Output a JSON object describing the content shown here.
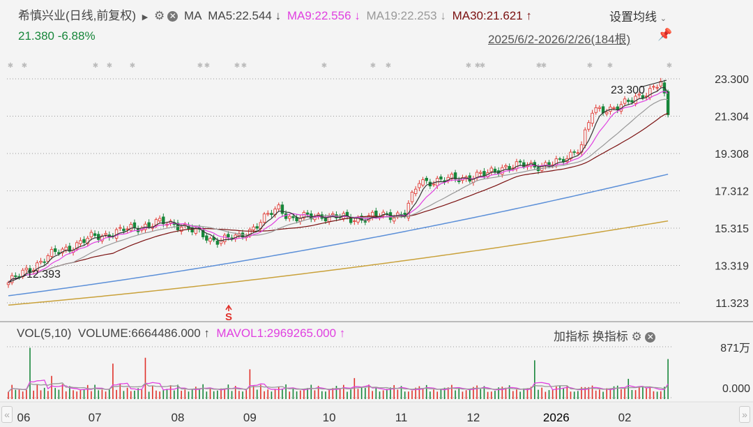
{
  "header": {
    "title": "希慎兴业(日线,前复权)",
    "ma_label": "MA",
    "ma5": "MA5:22.544 ↓",
    "ma9": "MA9:22.556 ↓",
    "ma19": "MA19:22.253 ↓",
    "ma30": "MA30:21.621 ↑",
    "set_ma": "设置均线",
    "price_change": "21.380 -6.88%",
    "range": "2025/6/2-2026/2/26(184根)"
  },
  "volume_header": {
    "vol": "VOL(5,10)",
    "volume": "VOLUME:6664486.000 ↑",
    "mavol": "MAVOL1:2969265.000 ↑",
    "add_indicator": "加指标",
    "switch_indicator": "换指标"
  },
  "annotations": {
    "high": "23.300",
    "low": "12.393",
    "signal": "S"
  },
  "colors": {
    "up": "#e0302a",
    "down": "#17863a",
    "ma5": "#333333",
    "ma9": "#e040e0",
    "ma19": "#999999",
    "ma30": "#7a1010",
    "long1": "#5b8fd8",
    "long2": "#c9a13a"
  },
  "chart_data": {
    "type": "candlestick",
    "bars": 184,
    "price_axis": [
      "23.300",
      "21.304",
      "19.308",
      "17.312",
      "15.315",
      "13.319",
      "11.323"
    ],
    "ylim": [
      11.323,
      23.3
    ],
    "x_labels": [
      "06",
      "07",
      "08",
      "09",
      "10",
      "11",
      "12",
      "2026",
      "02"
    ],
    "x_label_index": [
      2,
      24,
      47,
      67,
      89,
      109,
      129,
      152,
      171
    ],
    "close_anchors": [
      [
        0,
        12.4
      ],
      [
        11,
        13.8
      ],
      [
        23,
        14.8
      ],
      [
        41,
        15.6
      ],
      [
        48,
        15.5
      ],
      [
        56,
        14.7
      ],
      [
        64,
        14.8
      ],
      [
        75,
        16.4
      ],
      [
        79,
        15.8
      ],
      [
        87,
        16.0
      ],
      [
        95,
        15.8
      ],
      [
        110,
        16.1
      ],
      [
        114,
        17.8
      ],
      [
        122,
        17.9
      ],
      [
        133,
        18.2
      ],
      [
        137,
        18.6
      ],
      [
        149,
        18.7
      ],
      [
        153,
        18.8
      ],
      [
        159,
        19.8
      ],
      [
        162,
        21.5
      ],
      [
        168,
        21.8
      ],
      [
        172,
        22.0
      ],
      [
        181,
        23.1
      ],
      [
        183,
        21.38
      ]
    ],
    "long_ma_1": [
      11.7,
      18.2
    ],
    "long_ma_2": [
      11.2,
      15.7
    ],
    "volume_axis": [
      "871万",
      "0.000"
    ],
    "volume_max": 8710000,
    "last_volume": 6664486
  }
}
